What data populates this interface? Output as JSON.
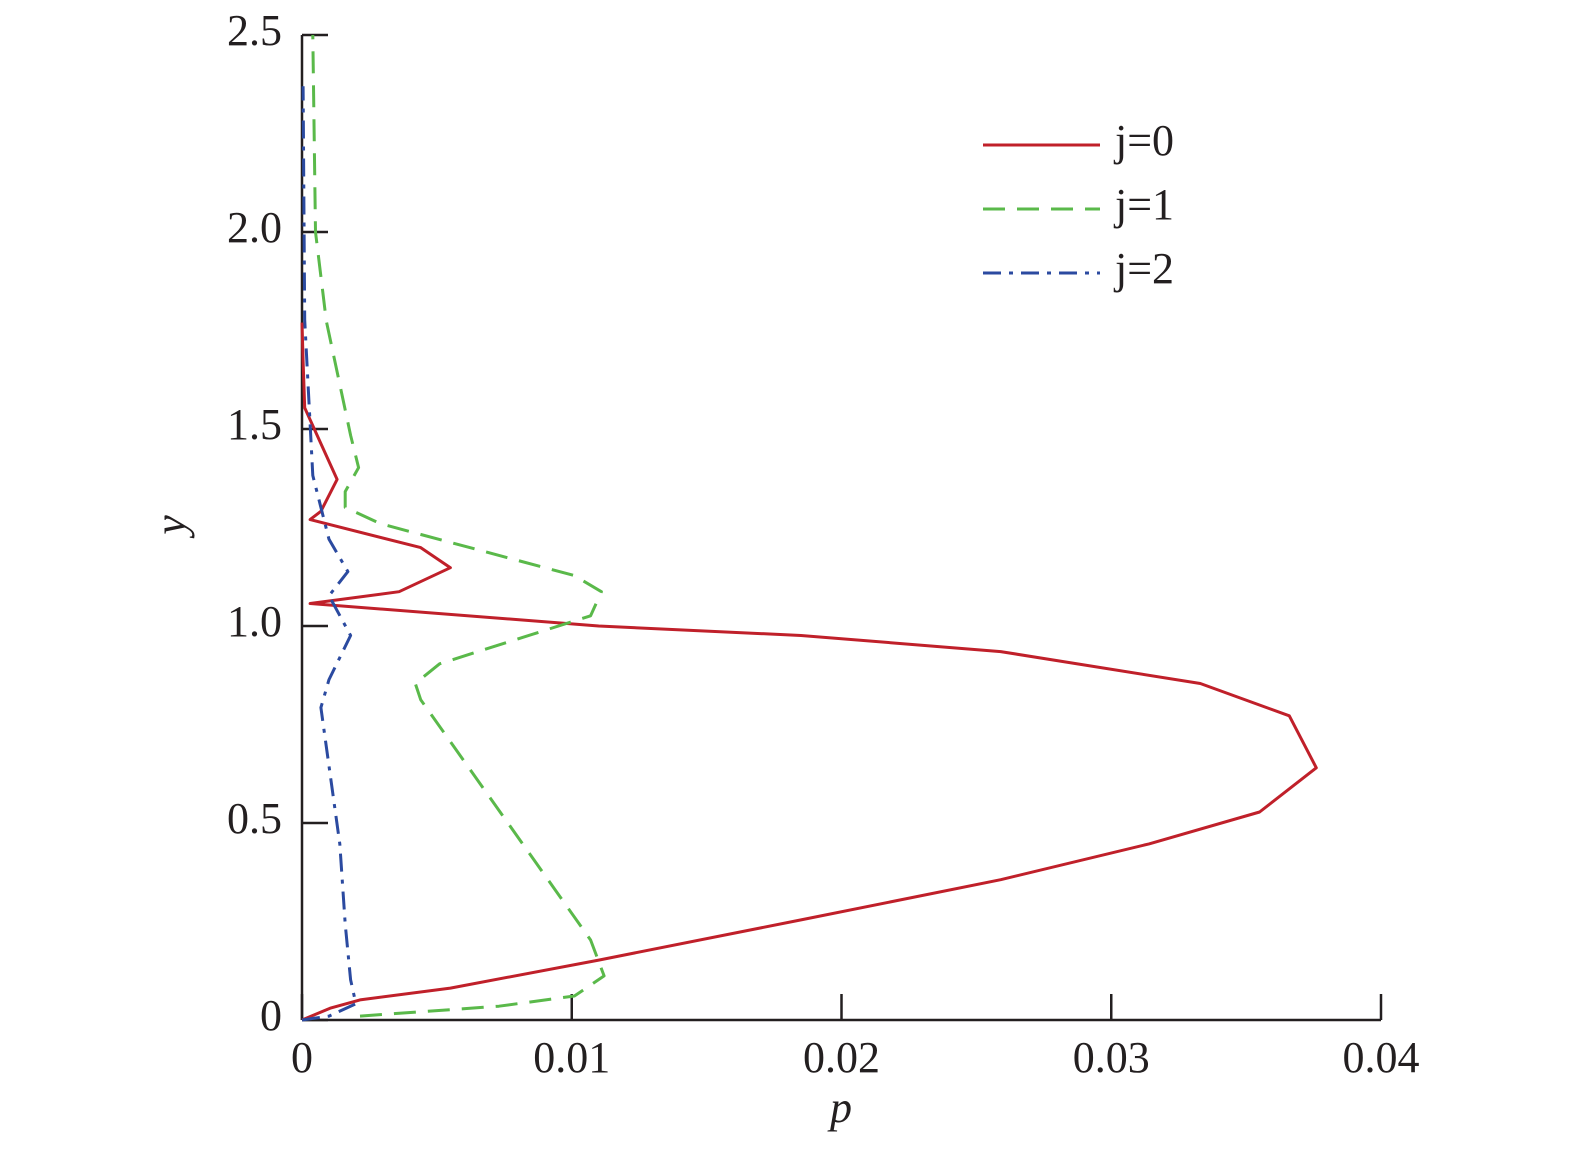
{
  "chart_data": {
    "type": "line",
    "xlabel": "p",
    "ylabel": "y",
    "xlim": [
      0,
      0.04
    ],
    "ylim": [
      0,
      2.5
    ],
    "xticks": [
      0,
      0.01,
      0.02,
      0.03,
      0.04
    ],
    "yticks": [
      0,
      0.5,
      {
        "value": 1,
        "label": "1.0"
      },
      1.5,
      {
        "value": 2,
        "label": "2.0"
      },
      2.5
    ],
    "legend": "upper right",
    "series": [
      {
        "name": "j=0",
        "color": "#c0202a",
        "dash": "solid",
        "x": [
          0,
          0.00104,
          0.00215,
          0.0055,
          0.011,
          0.0185,
          0.0259,
          0.0314,
          0.0355,
          0.0376,
          0.0366,
          0.0333,
          0.0259,
          0.0185,
          0.011,
          0.0003,
          0.0036,
          0.0055,
          0.0044,
          0.0003,
          0.0007,
          0.0013,
          0.0007,
          0.0001,
          4e-05,
          0
        ],
        "y": [
          0,
          0.03,
          0.051,
          0.081,
          0.152,
          0.254,
          0.356,
          0.447,
          0.528,
          0.64,
          0.772,
          0.854,
          0.935,
          0.976,
          1.0,
          1.057,
          1.087,
          1.148,
          1.199,
          1.27,
          1.291,
          1.372,
          1.463,
          1.554,
          1.672,
          1.77
        ]
      },
      {
        "name": "j=1",
        "color": "#5ab94a",
        "dash": "dashed",
        "x": [
          0.00215,
          0.0073,
          0.0101,
          0.0112,
          0.0107,
          0.0044,
          0.0042,
          0.0051,
          0.0107,
          0.0111,
          0.0101,
          0.0029,
          0.0016,
          0.0016,
          0.0021,
          0.0018,
          0.0009,
          0.0005,
          0.0004
        ],
        "y": [
          0.01,
          0.035,
          0.061,
          0.112,
          0.203,
          0.813,
          0.854,
          0.904,
          1.026,
          1.087,
          1.128,
          1.26,
          1.301,
          1.341,
          1.402,
          1.484,
          1.774,
          2.0,
          2.5
        ]
      },
      {
        "name": "j=2",
        "color": "#2b4aa0",
        "dash": "dashdot",
        "x": [
          0,
          0.001,
          0.002,
          0.0018,
          0.0016,
          0.0014,
          0.0007,
          0.001,
          0.0018,
          0.001,
          0.0017,
          0.001,
          0.0004,
          0.0001,
          4e-05
        ],
        "y": [
          0,
          0.01,
          0.041,
          0.102,
          0.244,
          0.447,
          0.793,
          0.864,
          0.976,
          1.077,
          1.138,
          1.22,
          1.382,
          1.777,
          2.37
        ]
      }
    ]
  }
}
